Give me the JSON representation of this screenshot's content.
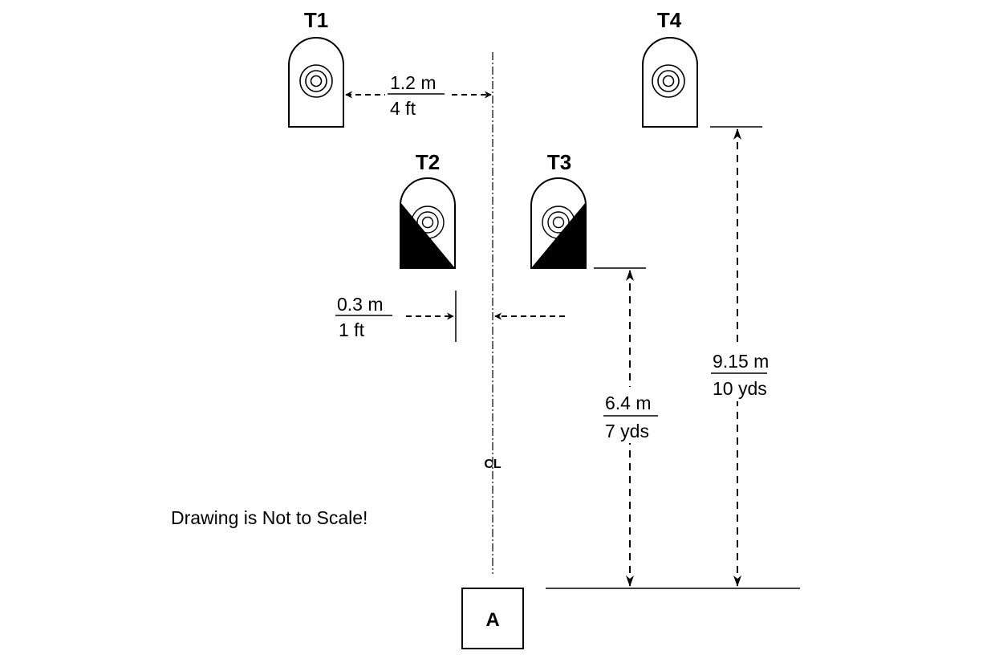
{
  "targets": {
    "t1": {
      "label": "T1"
    },
    "t2": {
      "label": "T2"
    },
    "t3": {
      "label": "T3"
    },
    "t4": {
      "label": "T4"
    }
  },
  "dimensions": {
    "target_offset": {
      "metric": "1.2 m",
      "imperial": "4 ft"
    },
    "lateral_offset": {
      "metric": "0.3 m",
      "imperial": "1 ft"
    },
    "near_distance": {
      "metric": "6.4 m",
      "imperial": "7 yds"
    },
    "far_distance": {
      "metric": "9.15 m",
      "imperial": "10 yds"
    }
  },
  "centerline": {
    "label": "CL"
  },
  "position": {
    "label": "A"
  },
  "note": "Drawing is Not to Scale!",
  "colors": {
    "ink": "#000000",
    "paper": "#ffffff"
  }
}
